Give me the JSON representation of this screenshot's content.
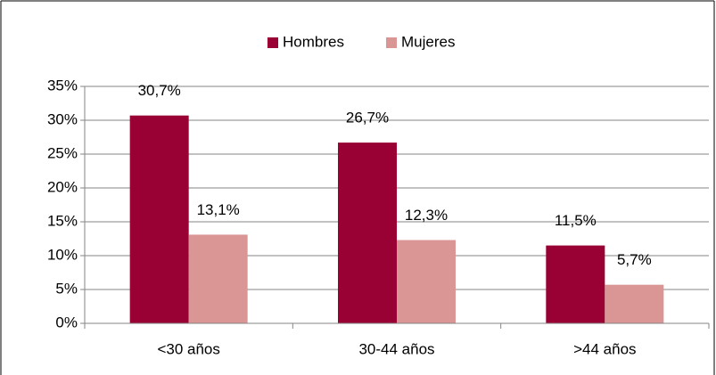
{
  "chart_data": {
    "type": "bar",
    "categories": [
      "<30 años",
      "30-44 años",
      ">44 años"
    ],
    "series": [
      {
        "name": "Hombres",
        "color": "#990033",
        "values": [
          30.7,
          26.7,
          11.5
        ],
        "value_labels": [
          "30,7%",
          "26,7%",
          "11,5%"
        ]
      },
      {
        "name": "Mujeres",
        "color": "#d99694",
        "values": [
          13.1,
          12.3,
          5.7
        ],
        "value_labels": [
          "13,1%",
          "12,3%",
          "5,7%"
        ]
      }
    ],
    "ylim": [
      0,
      35
    ],
    "yticks": [
      {
        "value": 0,
        "label": "0%"
      },
      {
        "value": 5,
        "label": "5%"
      },
      {
        "value": 10,
        "label": "10%"
      },
      {
        "value": 15,
        "label": "15%"
      },
      {
        "value": 20,
        "label": "20%"
      },
      {
        "value": 25,
        "label": "25%"
      },
      {
        "value": 30,
        "label": "30%"
      },
      {
        "value": 35,
        "label": "35%"
      }
    ],
    "grid": true,
    "legend": "top"
  }
}
